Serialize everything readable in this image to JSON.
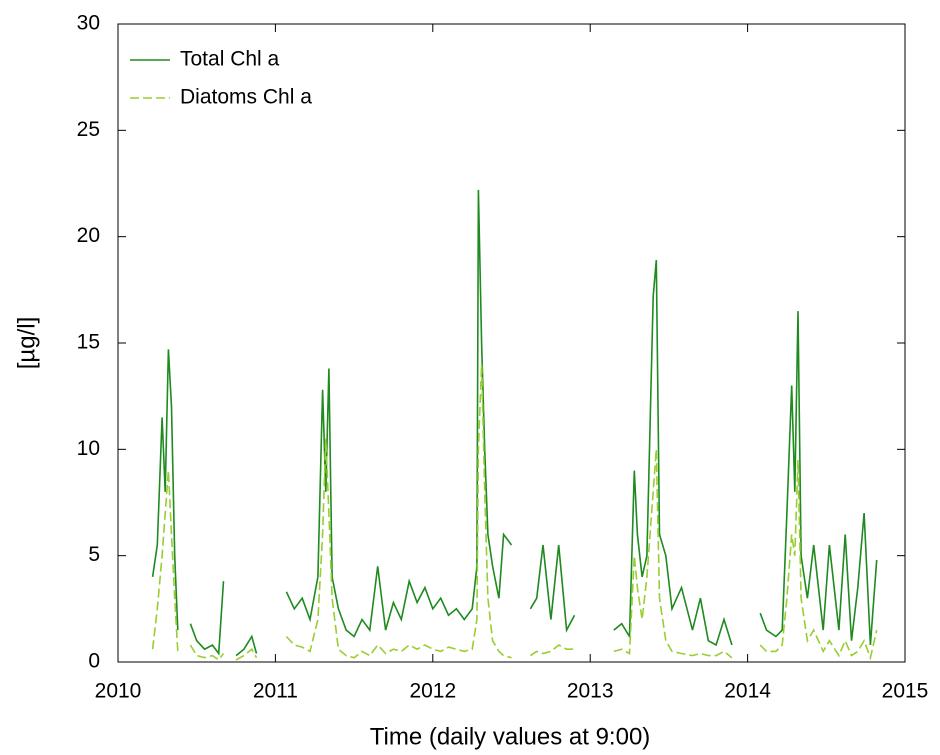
{
  "chart_data": {
    "type": "line",
    "xlabel": "Time (daily values at 9:00)",
    "ylabel": "[µg/l]",
    "x": [
      2010.22,
      2010.25,
      2010.28,
      2010.3,
      2010.32,
      2010.34,
      2010.36,
      2010.38,
      2010.42,
      2010.46,
      2010.5,
      2010.55,
      2010.6,
      2010.64,
      2010.67,
      2010.7,
      2010.75,
      2010.8,
      2010.85,
      2010.88,
      2010.92,
      2011.07,
      2011.12,
      2011.17,
      2011.22,
      2011.27,
      2011.3,
      2011.32,
      2011.34,
      2011.36,
      2011.4,
      2011.45,
      2011.5,
      2011.55,
      2011.6,
      2011.65,
      2011.7,
      2011.75,
      2011.8,
      2011.85,
      2011.9,
      2011.95,
      2012.0,
      2012.05,
      2012.1,
      2012.15,
      2012.2,
      2012.25,
      2012.28,
      2012.29,
      2012.31,
      2012.33,
      2012.35,
      2012.38,
      2012.42,
      2012.45,
      2012.5,
      2012.55,
      2012.62,
      2012.66,
      2012.7,
      2012.75,
      2012.8,
      2012.85,
      2012.9,
      2012.95,
      2013.07,
      2013.1,
      2013.15,
      2013.2,
      2013.25,
      2013.28,
      2013.3,
      2013.33,
      2013.36,
      2013.4,
      2013.42,
      2013.44,
      2013.48,
      2013.52,
      2013.58,
      2013.65,
      2013.7,
      2013.75,
      2013.8,
      2013.85,
      2013.9,
      2013.95,
      2014.08,
      2014.12,
      2014.18,
      2014.22,
      2014.25,
      2014.28,
      2014.3,
      2014.32,
      2014.34,
      2014.38,
      2014.42,
      2014.48,
      2014.52,
      2014.58,
      2014.62,
      2014.66,
      2014.7,
      2014.74,
      2014.78,
      2014.82
    ],
    "series": [
      {
        "name": "Total Chl a",
        "color": "#1f8a1f",
        "dash": "none",
        "values": [
          4.0,
          5.5,
          11.5,
          8,
          14.7,
          12,
          5,
          1.5,
          null,
          1.8,
          1,
          0.6,
          0.8,
          0.4,
          3.8,
          null,
          0.3,
          0.6,
          1.2,
          0.4,
          null,
          3.3,
          2.5,
          3.0,
          2.0,
          4.0,
          12.8,
          8,
          13.8,
          4,
          2.5,
          1.5,
          1.2,
          2,
          1.5,
          4.5,
          1.5,
          2.8,
          2,
          3.8,
          2.8,
          3.5,
          2.5,
          3.0,
          2.2,
          2.5,
          2.0,
          2.5,
          4.5,
          22.2,
          15,
          10,
          6,
          4.5,
          3,
          6,
          5.5,
          null,
          2.5,
          3.0,
          5.5,
          2,
          5.5,
          1.5,
          2.2,
          null,
          3.5,
          null,
          1.5,
          1.8,
          1.2,
          9,
          6,
          4,
          5,
          17.2,
          18.9,
          6,
          5,
          2.5,
          3.5,
          1.5,
          3,
          1,
          0.8,
          2,
          0.8,
          null,
          2.3,
          1.5,
          1.2,
          1.5,
          7,
          13,
          8,
          16.5,
          5,
          3,
          5.5,
          1.5,
          5.5,
          1.5,
          6,
          1,
          3.5,
          7,
          0.8,
          4.8
        ]
      },
      {
        "name": "Diatoms Chl a",
        "color": "#9acd32",
        "dash": "9 4",
        "values": [
          0.6,
          2.5,
          5,
          7,
          9,
          6,
          3,
          0.5,
          null,
          0.8,
          0.3,
          0.2,
          0.3,
          0.1,
          0.4,
          null,
          0.1,
          0.3,
          0.6,
          0.2,
          null,
          1.2,
          0.8,
          0.7,
          0.5,
          2,
          6,
          10.5,
          7,
          3,
          0.6,
          0.3,
          0.2,
          0.5,
          0.3,
          0.8,
          0.4,
          0.6,
          0.5,
          0.8,
          0.6,
          0.8,
          0.6,
          0.5,
          0.7,
          0.6,
          0.5,
          0.6,
          2,
          10,
          14,
          8,
          3,
          1,
          0.5,
          0.3,
          0.2,
          null,
          0.3,
          0.5,
          0.4,
          0.5,
          0.8,
          0.6,
          0.6,
          null,
          null,
          null,
          0.5,
          0.6,
          0.4,
          5,
          3.5,
          2,
          4,
          8,
          10,
          3,
          1,
          0.5,
          0.4,
          0.3,
          0.4,
          0.3,
          0.3,
          0.5,
          0.2,
          null,
          0.8,
          0.5,
          0.5,
          0.8,
          3,
          6,
          5,
          9.5,
          3,
          1,
          1.5,
          0.5,
          1,
          0.3,
          1,
          0.3,
          0.5,
          1,
          0.2,
          1.5
        ]
      }
    ],
    "xlim": [
      2010,
      2015
    ],
    "xticks": [
      2010,
      2011,
      2012,
      2013,
      2014,
      2015
    ],
    "ylim": [
      0,
      30
    ],
    "yticks": [
      0,
      5,
      10,
      15,
      20,
      25,
      30
    ],
    "legend": "upper left"
  }
}
